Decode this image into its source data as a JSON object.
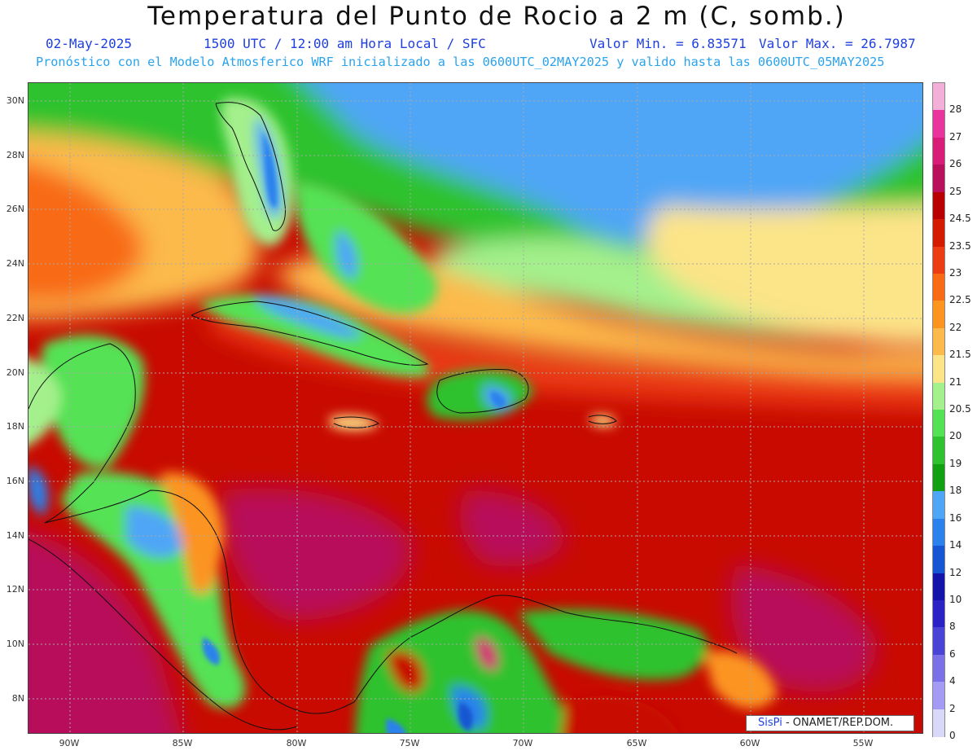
{
  "header": {
    "title": "Temperatura del Punto de Rocio a 2 m (C, somb.)",
    "date": "02-May-2025",
    "time": "1500 UTC / 12:00 am Hora Local / SFC",
    "min": "Valor Min. = 6.83571",
    "max": "Valor Max. = 26.7987",
    "model_line": "Pronóstico con el Modelo Atmosferico WRF inicializado a las 0600UTC_02MAY2025 y valido hasta las  0600UTC_05MAY2025"
  },
  "axes": {
    "lat_ticks": [
      "30N",
      "28N",
      "26N",
      "24N",
      "22N",
      "20N",
      "18N",
      "16N",
      "14N",
      "12N",
      "10N",
      "8N"
    ],
    "lon_ticks": [
      "90W",
      "85W",
      "80W",
      "75W",
      "70W",
      "65W",
      "60W",
      "55W"
    ]
  },
  "legend": {
    "levels": [
      {
        "label": "28",
        "color": "#f2b0d8"
      },
      {
        "label": "27",
        "color": "#e8349c"
      },
      {
        "label": "26",
        "color": "#d81c78"
      },
      {
        "label": "25",
        "color": "#b8105a"
      },
      {
        "label": "24.5",
        "color": "#b80000"
      },
      {
        "label": "23.5",
        "color": "#d41a00"
      },
      {
        "label": "23",
        "color": "#ec3c14"
      },
      {
        "label": "22.5",
        "color": "#f86a14"
      },
      {
        "label": "22",
        "color": "#fc9420"
      },
      {
        "label": "21.5",
        "color": "#fcba4c"
      },
      {
        "label": "21",
        "color": "#fce488"
      },
      {
        "label": "20.5",
        "color": "#a4f08c"
      },
      {
        "label": "20",
        "color": "#54e254"
      },
      {
        "label": "19",
        "color": "#2ec22e"
      },
      {
        "label": "18",
        "color": "#12a012"
      },
      {
        "label": "16",
        "color": "#50a6f6"
      },
      {
        "label": "14",
        "color": "#2c82ec"
      },
      {
        "label": "12",
        "color": "#1656d2"
      },
      {
        "label": "10",
        "color": "#1414aa"
      },
      {
        "label": "8",
        "color": "#2a22c4"
      },
      {
        "label": "6",
        "color": "#4a44d6"
      },
      {
        "label": "4",
        "color": "#7a70e8"
      },
      {
        "label": "2",
        "color": "#a49cf4"
      },
      {
        "label": "0",
        "color": "#d8d8f8"
      }
    ]
  },
  "credit": {
    "brand": "SisPi",
    "org": " - ONAMET/REP.DOM."
  }
}
